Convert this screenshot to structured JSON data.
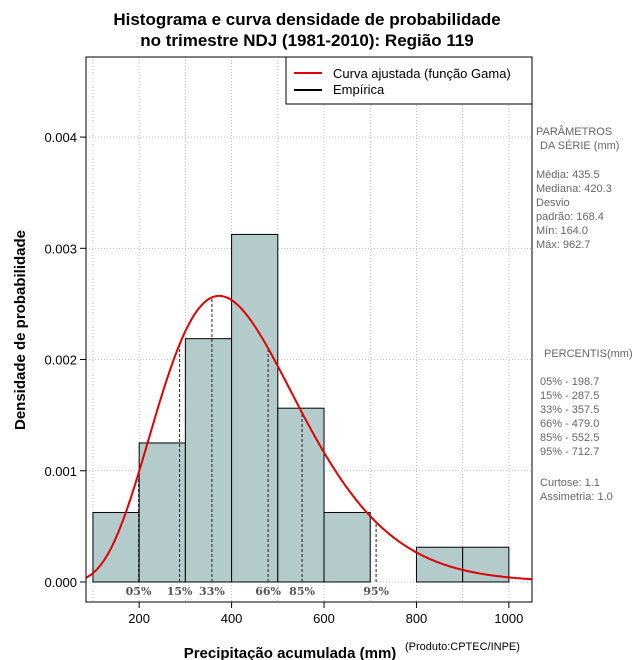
{
  "chart_data": {
    "type": "bar",
    "title_lines": [
      "Histograma e curva densidade de probabilidade",
      "no trimestre NDJ (1981-2010): Região 119"
    ],
    "xlabel": "Precipitação acumulada (mm)",
    "ylabel": "Densidade de probabilidade",
    "credit": "(Produto:CPTEC/INPE)",
    "xlim": [
      85,
      1050
    ],
    "ylim": [
      -0.00018,
      0.00472
    ],
    "x_ticks": [
      200,
      400,
      600,
      800,
      1000
    ],
    "y_ticks": [
      0.0,
      0.001,
      0.002,
      0.003,
      0.004
    ],
    "y_tick_labels": [
      "0.000",
      "0.001",
      "0.002",
      "0.003",
      "0.004"
    ],
    "bin_edges": [
      100,
      200,
      300,
      400,
      500,
      600,
      700,
      800,
      900,
      1000
    ],
    "values": [
      0.000625,
      0.00125,
      0.0021875,
      0.003125,
      0.0015625,
      0.000625,
      0.0,
      0.0003125,
      0.0003125
    ],
    "bar_color": "#b4cbcb",
    "curve_color": "#e00000",
    "gamma_fit": {
      "shape": 6.95,
      "scale": 62.7
    },
    "legend": {
      "position": "top-right",
      "entries": [
        {
          "label": "Curva ajustada (função Gama)",
          "color": "#e00000"
        },
        {
          "label": "Empírica",
          "color": "#000000"
        }
      ]
    },
    "percentile_markers": [
      {
        "label": "05%",
        "value": 198.7
      },
      {
        "label": "15%",
        "value": 287.5
      },
      {
        "label": "33%",
        "value": 357.5
      },
      {
        "label": "66%",
        "value": 479.0
      },
      {
        "label": "85%",
        "value": 552.5
      },
      {
        "label": "95%",
        "value": 712.7
      }
    ]
  },
  "side_panel": {
    "params_title_1": "PARÂMETROS",
    "params_title_2": "DA SÉRIE (mm)",
    "params": [
      "Média:  435.5",
      "Mediana:  420.3",
      "Desvio",
      "padrão:  168.4",
      "Mín:  164.0",
      "Máx:  962.7"
    ],
    "percentiles_title": "PERCENTIS(mm)",
    "percentiles": [
      "05% -   198.7",
      "15% -   287.5",
      "33% -   357.5",
      "66% -   479.0",
      "85% -   552.5",
      "95% -   712.7"
    ],
    "stats": [
      "Curtose:  1.1",
      "Assimetria:  1.0"
    ]
  }
}
